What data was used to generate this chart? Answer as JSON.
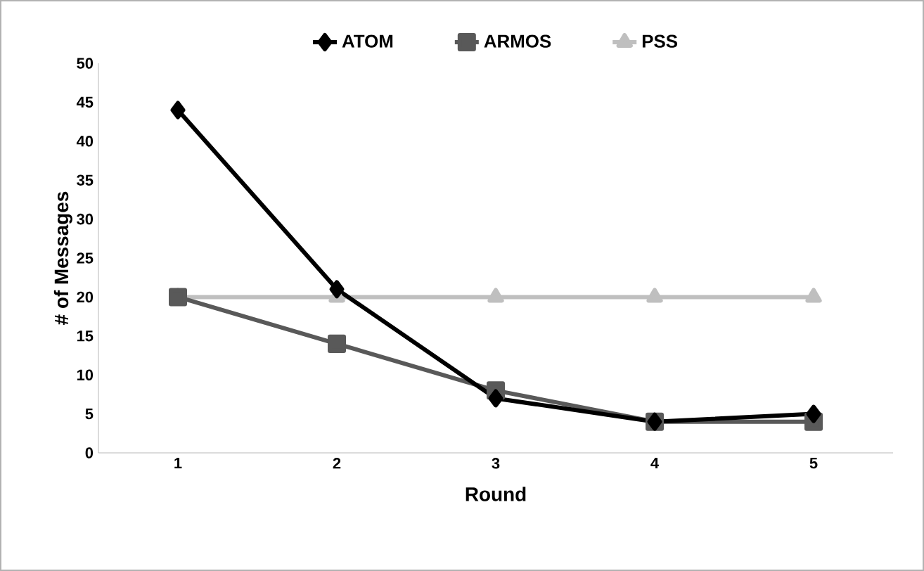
{
  "chart_data": {
    "type": "line",
    "xlabel": "Round",
    "ylabel": "# of Messages",
    "categories": [
      "1",
      "2",
      "3",
      "4",
      "5"
    ],
    "series": [
      {
        "name": "ATOM",
        "color": "#000000",
        "marker": "diamond",
        "values": [
          44,
          21,
          7,
          4,
          5
        ]
      },
      {
        "name": "ARMOS",
        "color": "#595959",
        "marker": "square",
        "values": [
          20,
          14,
          8,
          4,
          4
        ]
      },
      {
        "name": "PSS",
        "color": "#bfbfbf",
        "marker": "triangle",
        "values": [
          20,
          20,
          20,
          20,
          20
        ]
      }
    ],
    "ylim": [
      0,
      50
    ],
    "yticks": [
      0,
      5,
      10,
      15,
      20,
      25,
      30,
      35,
      40,
      45,
      50
    ],
    "grid": false,
    "legend": "top",
    "line_style": "solid"
  }
}
